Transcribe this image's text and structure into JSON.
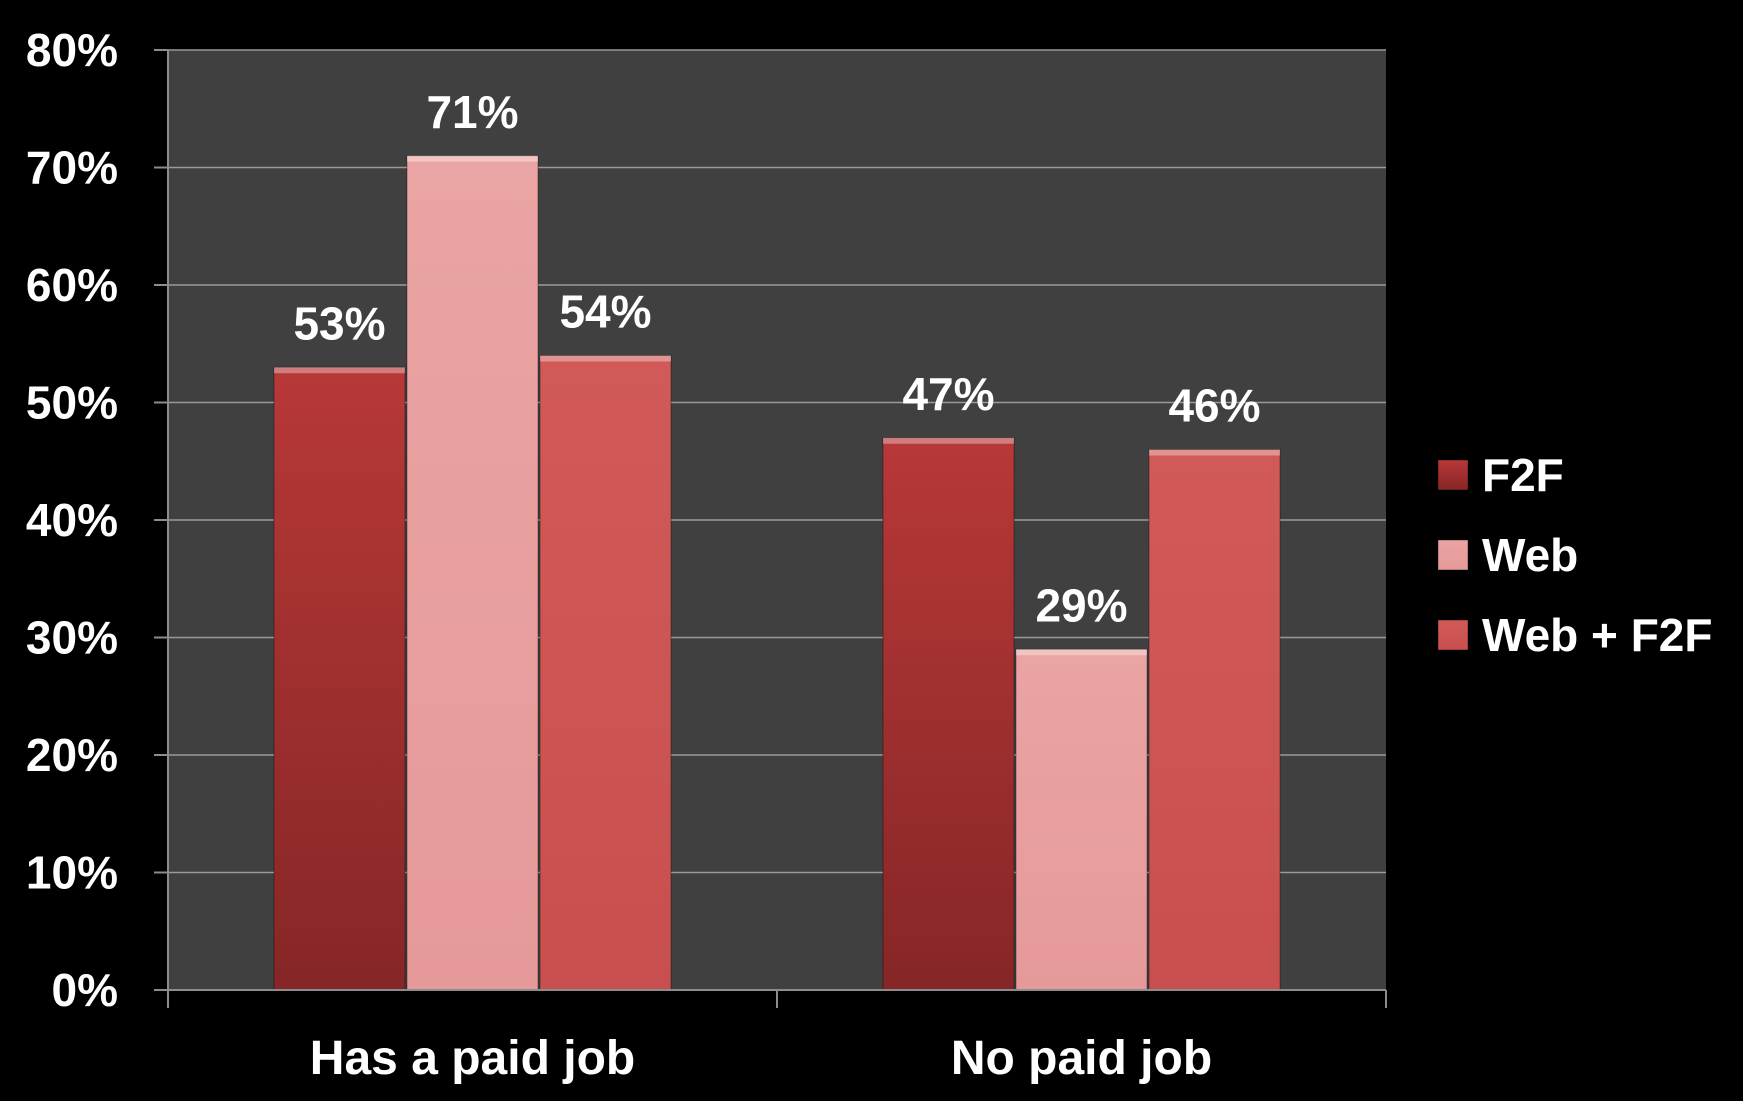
{
  "chart_data": {
    "type": "bar",
    "categories": [
      "Has a paid job",
      "No paid job"
    ],
    "series": [
      {
        "name": "F2F",
        "values": [
          53,
          47
        ],
        "labels": [
          "53%",
          "47%"
        ],
        "color": "#b33535"
      },
      {
        "name": "Web",
        "values": [
          71,
          29
        ],
        "labels": [
          "71%",
          "29%"
        ],
        "color": "#e8a1a0"
      },
      {
        "name": "Web + F2F",
        "values": [
          54,
          46
        ],
        "labels": [
          "54%",
          "46%"
        ],
        "color": "#cf5755"
      }
    ],
    "y_ticks": [
      "0%",
      "10%",
      "20%",
      "30%",
      "40%",
      "50%",
      "60%",
      "70%",
      "80%"
    ],
    "ylim": [
      0,
      80
    ],
    "grid": true,
    "legend_position": "right",
    "plot_background": "#404040",
    "page_background": "#000000"
  }
}
